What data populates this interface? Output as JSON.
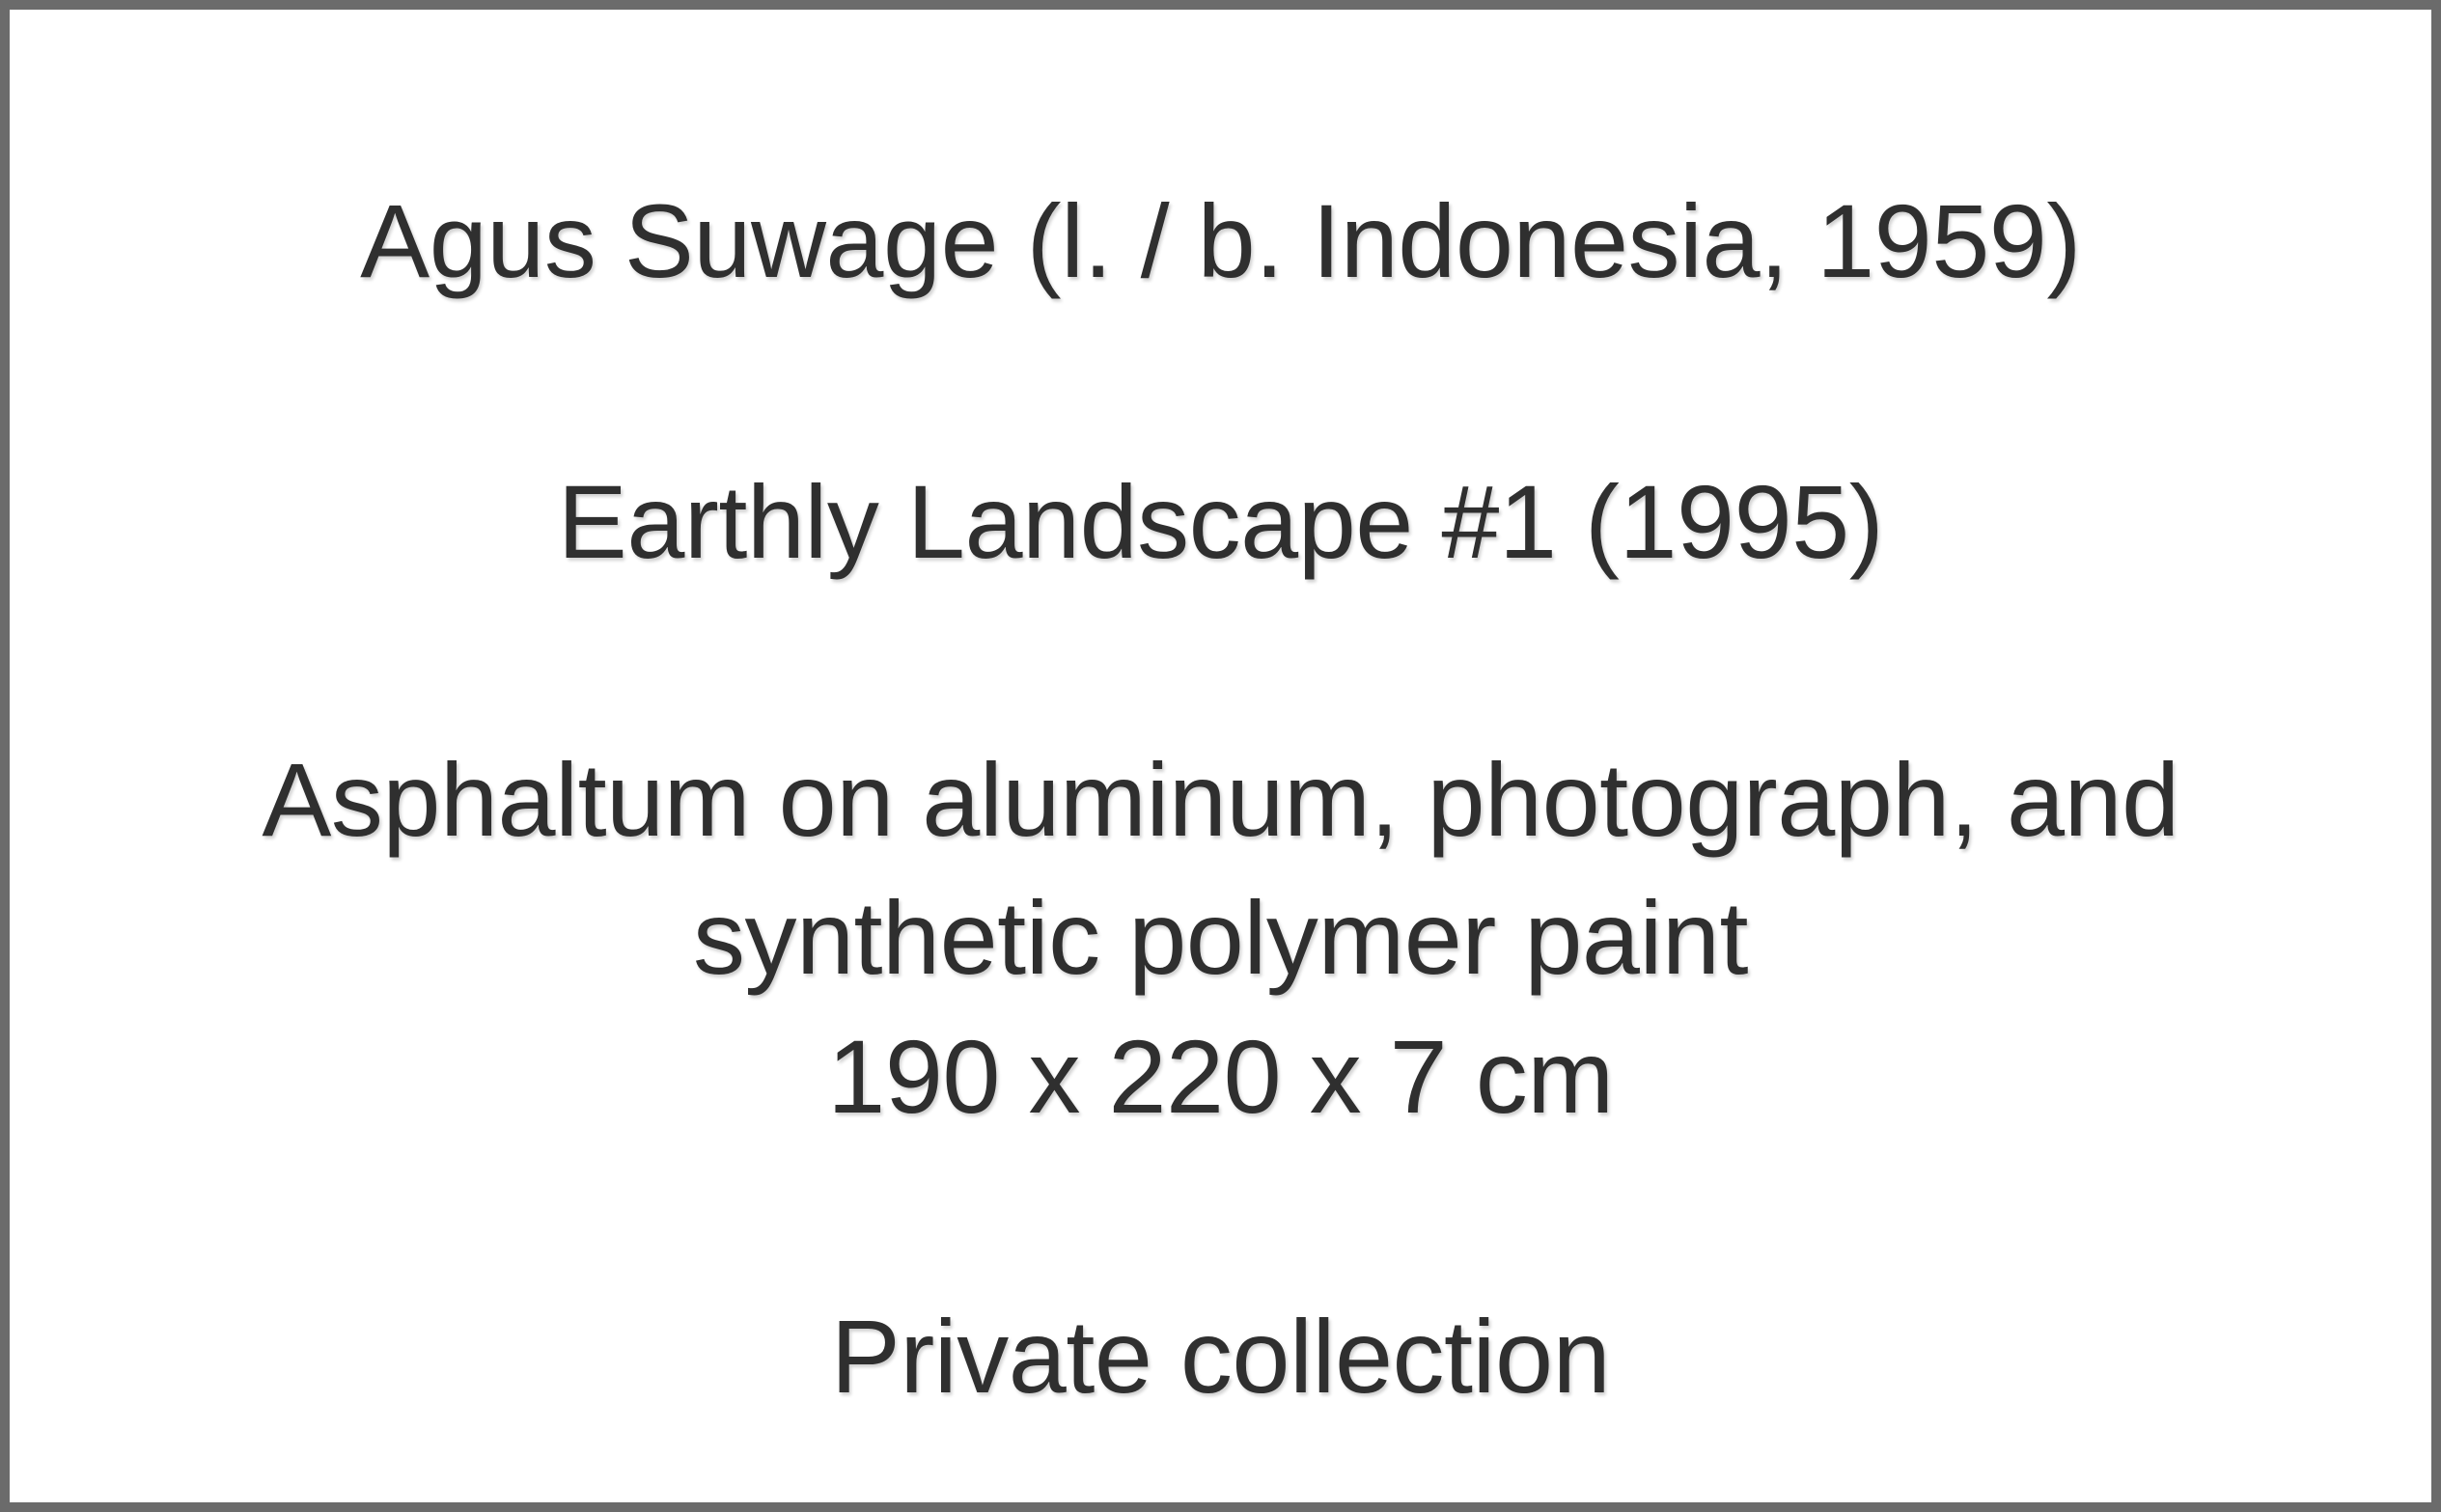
{
  "label": {
    "artist": "Agus Suwage (l. / b. Indonesia, 1959)",
    "title": "Earthly Landscape #1 (1995)",
    "medium_line1": "Asphaltum on aluminum, photograph, and",
    "medium_line2": "synthetic polymer paint",
    "dimensions": "190 x 220 x 7 cm",
    "credit": "Private collection"
  },
  "colors": {
    "text": "#2f2f2f",
    "border": "#6b6b6b",
    "background": "#ffffff"
  }
}
